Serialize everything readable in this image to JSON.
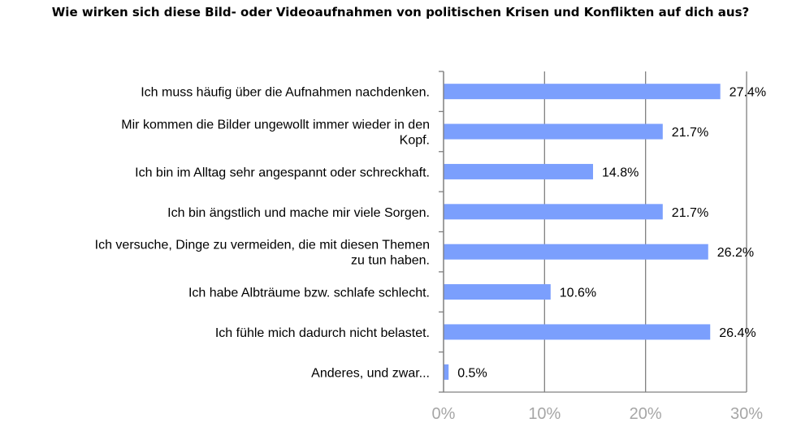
{
  "chart_data": {
    "type": "bar",
    "orientation": "horizontal",
    "title": "Wie wirken sich diese Bild- oder Videoaufnahmen von politischen Krisen und Konflikten auf dich aus?",
    "categories": [
      [
        "Ich muss häufig über die Aufnahmen nachdenken."
      ],
      [
        "Mir kommen die Bilder ungewollt immer wieder in den",
        "Kopf."
      ],
      [
        "Ich bin im Alltag sehr angespannt oder schreckhaft."
      ],
      [
        "Ich bin ängstlich und mache mir viele Sorgen."
      ],
      [
        "Ich versuche, Dinge zu vermeiden, die mit diesen Themen",
        "zu tun haben."
      ],
      [
        "Ich habe Albträume bzw. schlafe schlecht."
      ],
      [
        "Ich fühle mich dadurch nicht belastet."
      ],
      [
        "Anderes, und zwar..."
      ]
    ],
    "values": [
      27.4,
      21.7,
      14.8,
      21.7,
      26.2,
      10.6,
      26.4,
      0.5
    ],
    "data_labels": [
      "27.4%",
      "21.7%",
      "14.8%",
      "21.7%",
      "26.2%",
      "10.6%",
      "26.4%",
      "0.5%"
    ],
    "xlim": [
      0,
      30
    ],
    "xticks": [
      0,
      10,
      20,
      30
    ],
    "xtick_labels": [
      "0%",
      "10%",
      "20%",
      "30%"
    ],
    "xlabel": "",
    "ylabel": "",
    "grid": true,
    "bar_color": "#7b9ffd",
    "grid_color": "#808080",
    "tick_label_color": "#a6a6a6"
  }
}
